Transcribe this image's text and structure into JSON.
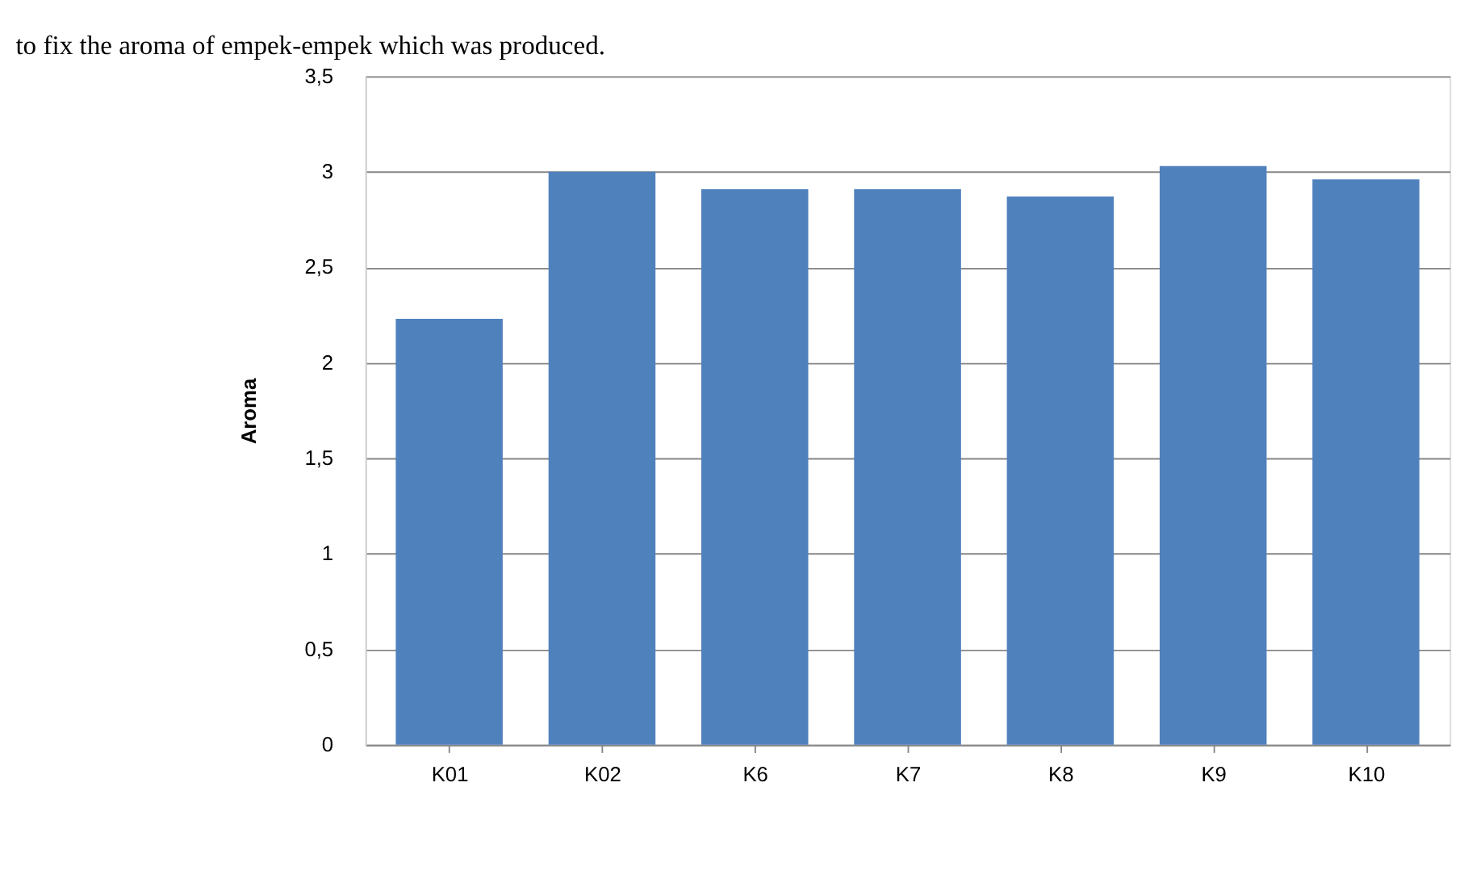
{
  "chart_data": {
    "type": "bar",
    "ylabel": "Aroma",
    "annotations": [
      "to fix the aroma of empek-empek which was produced."
    ],
    "categories": [
      "K01",
      "K02",
      "K6",
      "K7",
      "K8",
      "K9",
      "K10"
    ],
    "values": [
      2.23,
      3.0,
      2.91,
      2.91,
      2.87,
      3.03,
      2.96
    ],
    "color": "#4f81bd",
    "ylim": [
      0,
      3.5
    ],
    "yticks": [
      {
        "value": 0,
        "label": "0"
      },
      {
        "value": 0.5,
        "label": "0,5"
      },
      {
        "value": 1,
        "label": "1"
      },
      {
        "value": 1.5,
        "label": "1,5"
      },
      {
        "value": 2,
        "label": "2"
      },
      {
        "value": 2.5,
        "label": "2,5"
      },
      {
        "value": 3,
        "label": "3"
      },
      {
        "value": 3.5,
        "label": "3,5"
      }
    ],
    "grid": "y"
  }
}
